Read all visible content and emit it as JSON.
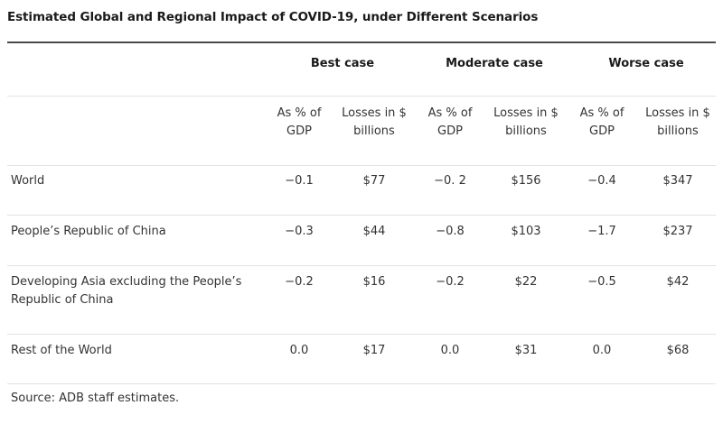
{
  "table": {
    "title": "Estimated Global and Regional Impact of COVID-19, under Different Scenarios",
    "groups": [
      {
        "label": "Best case"
      },
      {
        "label": "Moderate case"
      },
      {
        "label": "Worse case"
      }
    ],
    "subheads": [
      {
        "line1": "As % of",
        "line2": "GDP"
      },
      {
        "line1": "Losses in $",
        "line2": "billions"
      },
      {
        "line1": "As % of",
        "line2": "GDP"
      },
      {
        "line1": "Losses in $",
        "line2": "billions"
      },
      {
        "line1": "As % of",
        "line2": "GDP"
      },
      {
        "line1": "Losses in $",
        "line2": "billions"
      }
    ],
    "rows": [
      {
        "line1": "World",
        "line2": "",
        "values": [
          "−0.1",
          "$77",
          "−0. 2",
          "$156",
          "−0.4",
          "$347"
        ]
      },
      {
        "line1": "People’s Republic of China",
        "line2": "",
        "values": [
          "−0.3",
          "$44",
          "−0.8",
          "$103",
          "−1.7",
          "$237"
        ]
      },
      {
        "line1": "Developing Asia excluding the People’s",
        "line2": "Republic of China",
        "values": [
          "−0.2",
          "$16",
          "−0.2",
          "$22",
          "−0.5",
          "$42"
        ]
      },
      {
        "line1": "Rest of the World",
        "line2": "",
        "values": [
          "0.0",
          "$17",
          "0.0",
          "$31",
          "0.0",
          "$68"
        ]
      }
    ],
    "source": "Source: ADB staff estimates."
  }
}
